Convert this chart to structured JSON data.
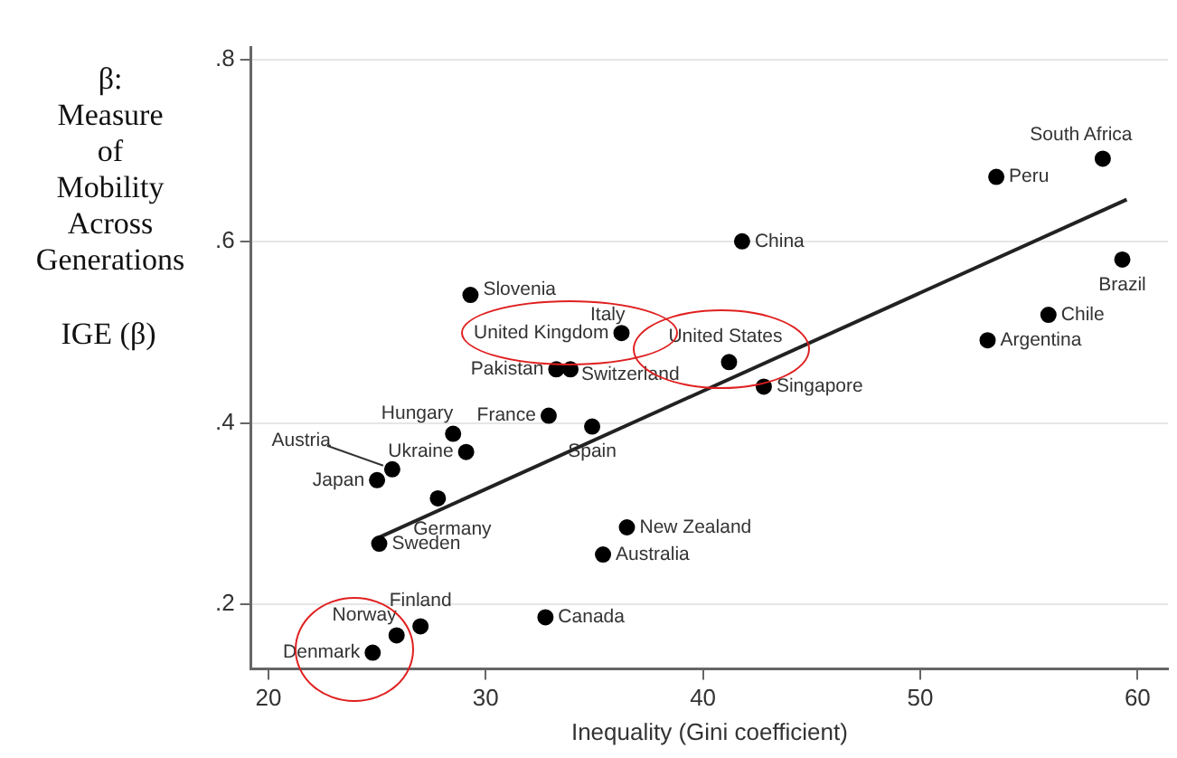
{
  "chart_data": {
    "type": "scatter",
    "xlabel": "Inequality (Gini coefficient)",
    "ylabel": "IGE (β)",
    "series": [
      {
        "color": "#000000",
        "marker": "circle",
        "x": [
          58.4,
          53.5,
          41.8,
          59.3,
          55.9,
          53.1,
          29.3,
          36.25,
          41.2,
          42.8,
          33.25,
          33.9,
          32.9,
          34.9,
          28.5,
          29.1,
          25.7,
          25.0,
          27.8,
          25.1,
          36.5,
          35.4,
          32.75,
          27.0,
          25.9,
          24.8
        ],
        "values": [
          0.691,
          0.671,
          0.6,
          0.58,
          0.519,
          0.491,
          0.541,
          0.499,
          0.467,
          0.44,
          0.459,
          0.459,
          0.408,
          0.396,
          0.388,
          0.368,
          0.349,
          0.337,
          0.317,
          0.267,
          0.285,
          0.255,
          0.186,
          0.176,
          0.166,
          0.147
        ]
      },
      {
        "type": "line",
        "color": "#222222",
        "x": [
          25.0,
          59.5
        ],
        "values": [
          0.273,
          0.646
        ]
      }
    ],
    "annotations": [
      "β: Measure of Mobility Across Generations",
      {
        "text": "South Africa",
        "x": 58.4,
        "y": 0.691
      },
      {
        "text": "Peru",
        "x": 53.5,
        "y": 0.671
      },
      {
        "text": "China",
        "x": 41.8,
        "y": 0.6
      },
      {
        "text": "Brazil",
        "x": 59.3,
        "y": 0.58
      },
      {
        "text": "Chile",
        "x": 55.9,
        "y": 0.519
      },
      {
        "text": "Argentina",
        "x": 53.1,
        "y": 0.491
      },
      {
        "text": "Slovenia",
        "x": 29.3,
        "y": 0.541
      },
      {
        "text": "Italy",
        "x": 36.25,
        "y": 0.499
      },
      {
        "text": "United Kingdom",
        "x": 36.25,
        "y": 0.499
      },
      {
        "text": "United States",
        "x": 41.2,
        "y": 0.467
      },
      {
        "text": "Singapore",
        "x": 42.8,
        "y": 0.44
      },
      {
        "text": "Pakistan",
        "x": 33.25,
        "y": 0.459
      },
      {
        "text": "Switzerland",
        "x": 33.9,
        "y": 0.459
      },
      {
        "text": "France",
        "x": 32.9,
        "y": 0.408
      },
      {
        "text": "Spain",
        "x": 34.9,
        "y": 0.396
      },
      {
        "text": "Hungary",
        "x": 28.5,
        "y": 0.388
      },
      {
        "text": "Ukraine",
        "x": 29.1,
        "y": 0.368
      },
      {
        "text": "Austria",
        "x": 25.7,
        "y": 0.349
      },
      {
        "text": "Japan",
        "x": 25.0,
        "y": 0.337
      },
      {
        "text": "Germany",
        "x": 27.8,
        "y": 0.317
      },
      {
        "text": "Sweden",
        "x": 25.1,
        "y": 0.267
      },
      {
        "text": "New Zealand",
        "x": 36.5,
        "y": 0.285
      },
      {
        "text": "Australia",
        "x": 35.4,
        "y": 0.255
      },
      {
        "text": "Canada",
        "x": 32.75,
        "y": 0.186
      },
      {
        "text": "Finland",
        "x": 27.0,
        "y": 0.176
      },
      {
        "text": "Norway",
        "x": 25.9,
        "y": 0.166
      },
      {
        "text": "Denmark",
        "x": 24.8,
        "y": 0.147
      }
    ],
    "xlim": [
      19.2,
      61.4
    ],
    "xticks": [
      20,
      30,
      40,
      50,
      60
    ],
    "ylim": [
      0.129,
      0.814
    ],
    "yticks": [
      {
        "value": 0.2,
        "label": ".2"
      },
      {
        "value": 0.4,
        "label": ".4"
      },
      {
        "value": 0.6,
        "label": ".6"
      },
      {
        "value": 0.8,
        "label": ".8"
      }
    ],
    "grid": "y"
  }
}
